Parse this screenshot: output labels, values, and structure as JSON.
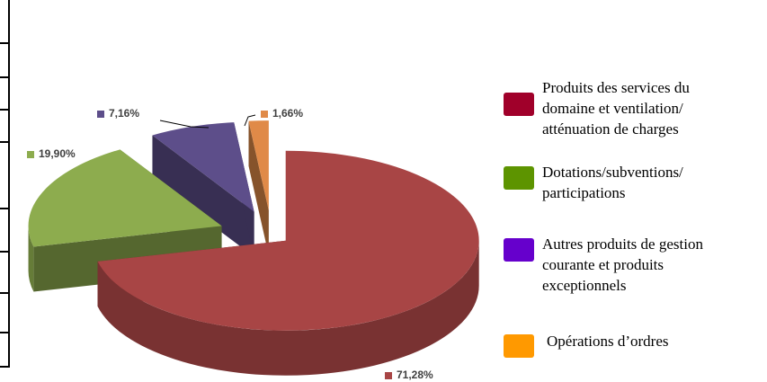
{
  "chart_data": {
    "type": "pie3d",
    "series": [
      {
        "name": "Produits des services du domaine et ventilation/ atténuation de charges",
        "color": "#a84545",
        "legend_color": "#a0002a",
        "values": [
          71.28
        ],
        "value_labels": [
          "71,28%"
        ]
      },
      {
        "name": "Dotations/subventions/ participations",
        "color": "#8dac4e",
        "legend_color": "#5d9400",
        "values": [
          19.9
        ],
        "value_labels": [
          "19,90%"
        ]
      },
      {
        "name": "Autres produits de gestion courante et produits exceptionnels",
        "color": "#5d4e8a",
        "legend_color": "#6600cc",
        "values": [
          7.16
        ],
        "value_labels": [
          "7,16%"
        ]
      },
      {
        "name": "Opérations d’ordres",
        "color": "#e08a48",
        "legend_color": "#ff9900",
        "values": [
          1.66
        ],
        "value_labels": [
          "1,66%"
        ]
      }
    ]
  }
}
